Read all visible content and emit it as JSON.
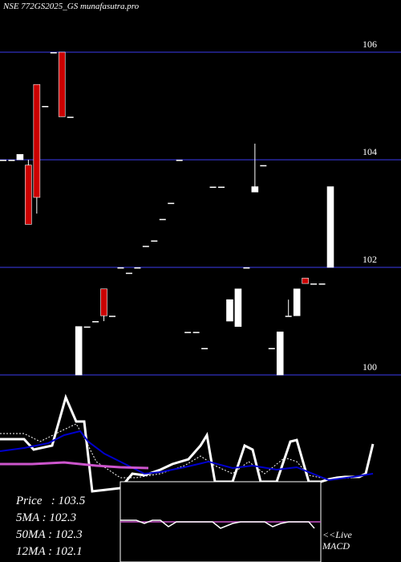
{
  "header": {
    "title": "NSE 772GS2025_GS munafasutra.pro"
  },
  "stats": [
    {
      "label": "Price",
      "value": "103.5"
    },
    {
      "label": "5MA",
      "value": "102.3"
    },
    {
      "label": "50MA",
      "value": "102.3"
    },
    {
      "label": "12MA",
      "value": "102.1"
    }
  ],
  "live_label": "<<Live",
  "macd_label": "MACD",
  "colors": {
    "background": "#000000",
    "gridline": "#1e1e78",
    "up_candle": "#ffffff",
    "down_candle": "#cc0000",
    "ma_fast": "#0000cc",
    "ma_slow": "#cc55cc"
  },
  "chart_data": {
    "type": "candlestick",
    "y_ticks": [
      100,
      102,
      104,
      106
    ],
    "ylim": [
      99.9,
      106.9
    ],
    "candles": [
      {
        "o": 104.0,
        "h": 104.0,
        "l": 104.0,
        "c": 104.0
      },
      {
        "o": 104.0,
        "h": 104.0,
        "l": 104.0,
        "c": 104.0
      },
      {
        "o": 104.0,
        "h": 104.1,
        "l": 104.0,
        "c": 104.1
      },
      {
        "o": 103.9,
        "h": 104.0,
        "l": 102.8,
        "c": 102.8
      },
      {
        "o": 105.4,
        "h": 105.4,
        "l": 103.0,
        "c": 103.3
      },
      {
        "o": 105.0,
        "h": 105.0,
        "l": 105.0,
        "c": 105.0
      },
      {
        "o": 106.0,
        "h": 106.0,
        "l": 106.0,
        "c": 106.0
      },
      {
        "o": 106.0,
        "h": 106.0,
        "l": 104.8,
        "c": 104.8
      },
      {
        "o": 104.8,
        "h": 104.8,
        "l": 104.8,
        "c": 104.8
      },
      {
        "o": 100.0,
        "h": 100.9,
        "l": 100.0,
        "c": 100.9
      },
      {
        "o": 100.9,
        "h": 100.9,
        "l": 100.9,
        "c": 100.9
      },
      {
        "o": 101.0,
        "h": 101.0,
        "l": 101.0,
        "c": 101.0
      },
      {
        "o": 101.6,
        "h": 101.6,
        "l": 101.0,
        "c": 101.1
      },
      {
        "o": 101.1,
        "h": 101.1,
        "l": 101.1,
        "c": 101.1
      },
      {
        "o": 102.0,
        "h": 102.0,
        "l": 102.0,
        "c": 102.0
      },
      {
        "o": 101.9,
        "h": 101.9,
        "l": 101.9,
        "c": 101.9
      },
      {
        "o": 102.0,
        "h": 102.0,
        "l": 102.0,
        "c": 102.0
      },
      {
        "o": 102.4,
        "h": 102.4,
        "l": 102.4,
        "c": 102.4
      },
      {
        "o": 102.5,
        "h": 102.5,
        "l": 102.5,
        "c": 102.5
      },
      {
        "o": 102.9,
        "h": 102.9,
        "l": 102.9,
        "c": 102.9
      },
      {
        "o": 103.2,
        "h": 103.2,
        "l": 103.2,
        "c": 103.2
      },
      {
        "o": 104.0,
        "h": 104.0,
        "l": 104.0,
        "c": 104.0
      },
      {
        "o": 100.8,
        "h": 100.8,
        "l": 100.8,
        "c": 100.8
      },
      {
        "o": 100.8,
        "h": 100.8,
        "l": 100.8,
        "c": 100.8
      },
      {
        "o": 100.5,
        "h": 100.5,
        "l": 100.5,
        "c": 100.5
      },
      {
        "o": 103.5,
        "h": 103.5,
        "l": 103.5,
        "c": 103.5
      },
      {
        "o": 103.5,
        "h": 103.5,
        "l": 103.5,
        "c": 103.5
      },
      {
        "o": 101.0,
        "h": 101.4,
        "l": 101.0,
        "c": 101.4
      },
      {
        "o": 100.9,
        "h": 101.6,
        "l": 100.9,
        "c": 101.6
      },
      {
        "o": 102.0,
        "h": 102.0,
        "l": 102.0,
        "c": 102.0
      },
      {
        "o": 103.4,
        "h": 104.3,
        "l": 103.4,
        "c": 103.5
      },
      {
        "o": 103.9,
        "h": 103.9,
        "l": 103.9,
        "c": 103.9
      },
      {
        "o": 100.5,
        "h": 100.5,
        "l": 100.5,
        "c": 100.5
      },
      {
        "o": 100.0,
        "h": 100.8,
        "l": 100.0,
        "c": 100.8
      },
      {
        "o": 101.1,
        "h": 101.4,
        "l": 101.1,
        "c": 101.1
      },
      {
        "o": 101.1,
        "h": 101.6,
        "l": 101.1,
        "c": 101.6
      },
      {
        "o": 101.8,
        "h": 101.8,
        "l": 101.7,
        "c": 101.7
      },
      {
        "o": 101.7,
        "h": 101.7,
        "l": 101.7,
        "c": 101.7
      },
      {
        "o": 101.7,
        "h": 101.7,
        "l": 101.7,
        "c": 101.7
      },
      {
        "o": 102.0,
        "h": 103.5,
        "l": 102.0,
        "c": 103.5
      }
    ]
  }
}
